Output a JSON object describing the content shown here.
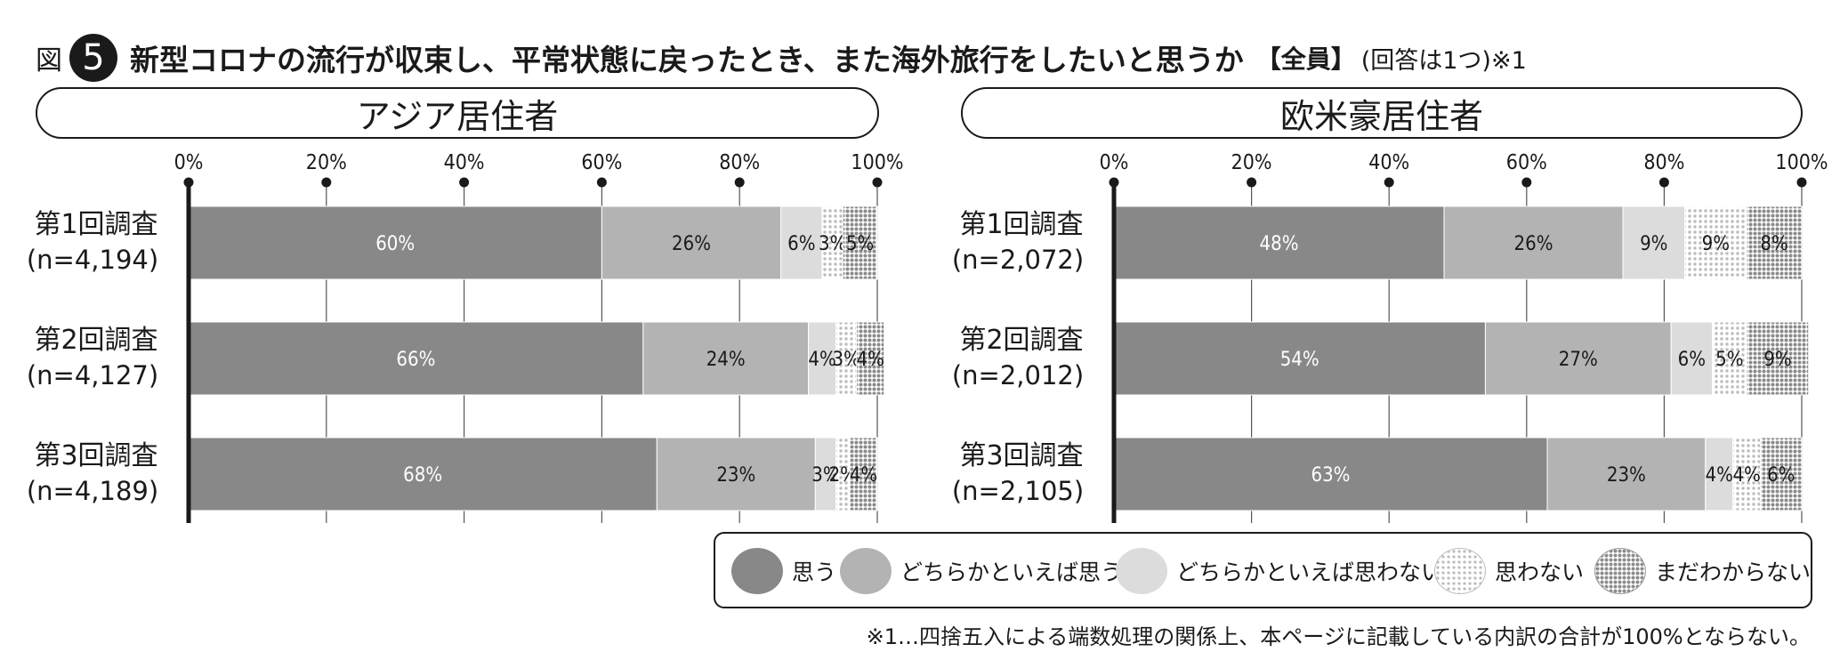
{
  "figure": {
    "label": "図",
    "number": "5",
    "title": "新型コロナの流行が収束し、平常状態に戻ったとき、また海外旅行をしたいと思うか",
    "tag": "【全員】",
    "note": "(回答は1つ)※1"
  },
  "colors": {
    "omou": "#888888",
    "dochiraka_omou": "#b3b3b3",
    "dochiraka_omowanai": "#dcdcdc",
    "omowanai": "light-dot-pattern",
    "madawakaranai": "dark-dot-pattern"
  },
  "legend": [
    {
      "key": "omou",
      "label": "思う"
    },
    {
      "key": "dochiraka_omou",
      "label": "どちらかといえば思う"
    },
    {
      "key": "dochiraka_omowanai",
      "label": "どちらかといえば思わない"
    },
    {
      "key": "omowanai",
      "label": "思わない"
    },
    {
      "key": "madawakaranai",
      "label": "まだわからない"
    }
  ],
  "footnote": "※1…四捨五入による端数処理の関係上、本ページに記載している内訳の合計が100%とならない。",
  "chart_data": [
    {
      "type": "bar",
      "orientation": "horizontal",
      "stacked": true,
      "title": "アジア居住者",
      "xlim": [
        0,
        100
      ],
      "xticks": [
        "0%",
        "20%",
        "40%",
        "60%",
        "80%",
        "100%"
      ],
      "grid": true,
      "categories": [
        {
          "name": "第1回調査",
          "n": "(n=4,194)"
        },
        {
          "name": "第2回調査",
          "n": "(n=4,127)"
        },
        {
          "name": "第3回調査",
          "n": "(n=4,189)"
        }
      ],
      "series": [
        {
          "name": "思う",
          "values": [
            60,
            66,
            68
          ]
        },
        {
          "name": "どちらかといえば思う",
          "values": [
            26,
            24,
            23
          ]
        },
        {
          "name": "どちらかといえば思わない",
          "values": [
            6,
            4,
            3
          ]
        },
        {
          "name": "思わない",
          "values": [
            3,
            3,
            2
          ]
        },
        {
          "name": "まだわからない",
          "values": [
            5,
            4,
            4
          ]
        }
      ]
    },
    {
      "type": "bar",
      "orientation": "horizontal",
      "stacked": true,
      "title": "欧米豪居住者",
      "xlim": [
        0,
        100
      ],
      "xticks": [
        "0%",
        "20%",
        "40%",
        "60%",
        "80%",
        "100%"
      ],
      "grid": true,
      "categories": [
        {
          "name": "第1回調査",
          "n": "(n=2,072)"
        },
        {
          "name": "第2回調査",
          "n": "(n=2,012)"
        },
        {
          "name": "第3回調査",
          "n": "(n=2,105)"
        }
      ],
      "series": [
        {
          "name": "思う",
          "values": [
            48,
            54,
            63
          ]
        },
        {
          "name": "どちらかといえば思う",
          "values": [
            26,
            27,
            23
          ]
        },
        {
          "name": "どちらかといえば思わない",
          "values": [
            9,
            6,
            4
          ]
        },
        {
          "name": "思わない",
          "values": [
            9,
            5,
            4
          ]
        },
        {
          "name": "まだわからない",
          "values": [
            8,
            9,
            6
          ]
        }
      ]
    }
  ]
}
